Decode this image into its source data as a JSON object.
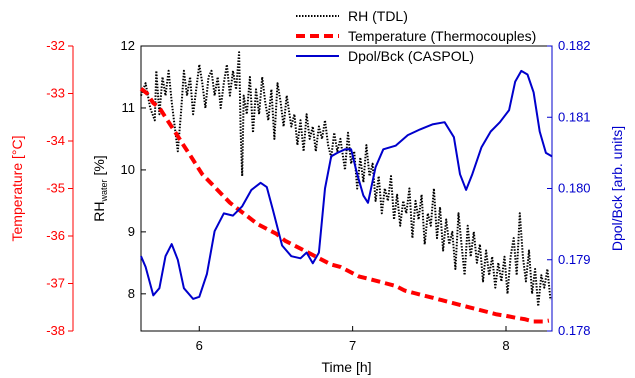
{
  "chart_data": {
    "type": "line",
    "xlabel": "Time [h]",
    "xlim": [
      5.62,
      8.3
    ],
    "x_ticks": [
      6,
      7,
      8
    ],
    "axes": {
      "left_temp": {
        "label": "Temperature [°C]",
        "range": [
          -38,
          -32
        ],
        "ticks": [
          -38,
          -37,
          -36,
          -35,
          -34,
          -33,
          -32
        ],
        "color": "#ff0000"
      },
      "left_rh": {
        "label_main": "RH",
        "label_sub": "water",
        "label_unit": " [%]",
        "range": [
          7.4,
          12
        ],
        "ticks": [
          8,
          9,
          10,
          11,
          12
        ],
        "color": "#000000"
      },
      "right": {
        "label": "Dpol/Bck [arb. units]",
        "range": [
          0.178,
          0.182
        ],
        "ticks": [
          0.178,
          0.179,
          0.18,
          0.181,
          0.182
        ],
        "tick_labels": [
          "0.178",
          "0.179",
          "0.180",
          "0.181",
          "0.182"
        ],
        "color": "#0000cc"
      }
    },
    "legend_position": "top",
    "series": [
      {
        "name": "RH (TDL)",
        "axis": "left_rh",
        "color": "#000000",
        "style": "dotted",
        "points": [
          [
            5.62,
            11.2
          ],
          [
            5.65,
            11.4
          ],
          [
            5.68,
            11.0
          ],
          [
            5.71,
            10.8
          ],
          [
            5.72,
            11.6
          ],
          [
            5.74,
            10.9
          ],
          [
            5.76,
            11.5
          ],
          [
            5.78,
            11.2
          ],
          [
            5.8,
            11.6
          ],
          [
            5.82,
            11.1
          ],
          [
            5.84,
            10.7
          ],
          [
            5.86,
            10.3
          ],
          [
            5.88,
            10.9
          ],
          [
            5.9,
            11.6
          ],
          [
            5.92,
            11.2
          ],
          [
            5.94,
            11.5
          ],
          [
            5.96,
            10.9
          ],
          [
            5.98,
            11.3
          ],
          [
            6.0,
            11.7
          ],
          [
            6.02,
            11.4
          ],
          [
            6.04,
            11.0
          ],
          [
            6.06,
            11.5
          ],
          [
            6.08,
            11.6
          ],
          [
            6.1,
            11.2
          ],
          [
            6.12,
            11.5
          ],
          [
            6.14,
            11.0
          ],
          [
            6.16,
            11.4
          ],
          [
            6.18,
            11.7
          ],
          [
            6.2,
            11.2
          ],
          [
            6.22,
            11.6
          ],
          [
            6.24,
            11.3
          ],
          [
            6.26,
            11.9
          ],
          [
            6.27,
            10.6
          ],
          [
            6.28,
            9.9
          ],
          [
            6.29,
            11.2
          ],
          [
            6.31,
            10.9
          ],
          [
            6.33,
            11.5
          ],
          [
            6.35,
            10.6
          ],
          [
            6.37,
            11.3
          ],
          [
            6.39,
            10.9
          ],
          [
            6.41,
            11.5
          ],
          [
            6.43,
            11.1
          ],
          [
            6.45,
            10.8
          ],
          [
            6.47,
            11.3
          ],
          [
            6.49,
            10.5
          ],
          [
            6.51,
            11.4
          ],
          [
            6.53,
            11.1
          ],
          [
            6.55,
            10.7
          ],
          [
            6.57,
            11.2
          ],
          [
            6.6,
            10.7
          ],
          [
            6.62,
            10.9
          ],
          [
            6.64,
            10.4
          ],
          [
            6.66,
            10.8
          ],
          [
            6.68,
            10.3
          ],
          [
            6.7,
            10.9
          ],
          [
            6.72,
            10.5
          ],
          [
            6.74,
            10.7
          ],
          [
            6.76,
            10.3
          ],
          [
            6.78,
            10.7
          ],
          [
            6.8,
            10.5
          ],
          [
            6.82,
            10.8
          ],
          [
            6.84,
            10.4
          ],
          [
            6.86,
            10.2
          ],
          [
            6.88,
            10.6
          ],
          [
            6.9,
            10.3
          ],
          [
            6.92,
            10.5
          ],
          [
            6.95,
            10.0
          ],
          [
            6.97,
            10.6
          ],
          [
            6.99,
            10.1
          ],
          [
            7.01,
            10.3
          ],
          [
            7.03,
            9.7
          ],
          [
            7.05,
            10.2
          ],
          [
            7.07,
            9.8
          ],
          [
            7.09,
            10.4
          ],
          [
            7.11,
            9.9
          ],
          [
            7.13,
            10.1
          ],
          [
            7.15,
            9.5
          ],
          [
            7.17,
            9.9
          ],
          [
            7.19,
            9.3
          ],
          [
            7.21,
            9.7
          ],
          [
            7.23,
            9.5
          ],
          [
            7.25,
            9.9
          ],
          [
            7.27,
            9.2
          ],
          [
            7.29,
            9.6
          ],
          [
            7.31,
            9.1
          ],
          [
            7.33,
            9.5
          ],
          [
            7.35,
            9.3
          ],
          [
            7.37,
            9.7
          ],
          [
            7.39,
            8.9
          ],
          [
            7.41,
            9.5
          ],
          [
            7.43,
            9.2
          ],
          [
            7.45,
            9.6
          ],
          [
            7.47,
            8.8
          ],
          [
            7.49,
            9.3
          ],
          [
            7.51,
            9.1
          ],
          [
            7.53,
            9.7
          ],
          [
            7.55,
            8.9
          ],
          [
            7.57,
            9.4
          ],
          [
            7.59,
            8.7
          ],
          [
            7.61,
            9.2
          ],
          [
            7.63,
            8.8
          ],
          [
            7.65,
            9.0
          ],
          [
            7.67,
            8.4
          ],
          [
            7.69,
            9.3
          ],
          [
            7.71,
            8.8
          ],
          [
            7.73,
            8.3
          ],
          [
            7.75,
            9.1
          ],
          [
            7.77,
            8.6
          ],
          [
            7.79,
            9.0
          ],
          [
            7.81,
            8.5
          ],
          [
            7.83,
            8.8
          ],
          [
            7.85,
            8.2
          ],
          [
            7.87,
            8.7
          ],
          [
            7.89,
            8.3
          ],
          [
            7.91,
            8.6
          ],
          [
            7.93,
            8.1
          ],
          [
            7.95,
            8.5
          ],
          [
            7.97,
            8.2
          ],
          [
            7.99,
            8.6
          ],
          [
            8.01,
            8.0
          ],
          [
            8.03,
            8.6
          ],
          [
            8.05,
            8.9
          ],
          [
            8.07,
            8.3
          ],
          [
            8.09,
            9.3
          ],
          [
            8.11,
            8.6
          ],
          [
            8.13,
            8.2
          ],
          [
            8.15,
            8.7
          ],
          [
            8.17,
            8.0
          ],
          [
            8.19,
            8.4
          ],
          [
            8.21,
            7.8
          ],
          [
            8.23,
            8.3
          ],
          [
            8.25,
            8.1
          ],
          [
            8.27,
            8.4
          ],
          [
            8.29,
            7.9
          ]
        ]
      },
      {
        "name": "Temperature (Thermocouples)",
        "axis": "left_temp",
        "color": "#ff0000",
        "style": "dashed",
        "points": [
          [
            5.62,
            -32.9
          ],
          [
            5.66,
            -33.0
          ],
          [
            5.7,
            -33.2
          ],
          [
            5.74,
            -33.3
          ],
          [
            5.78,
            -33.5
          ],
          [
            5.82,
            -33.7
          ],
          [
            5.86,
            -33.9
          ],
          [
            5.9,
            -34.1
          ],
          [
            5.94,
            -34.3
          ],
          [
            5.98,
            -34.5
          ],
          [
            6.02,
            -34.7
          ],
          [
            6.08,
            -34.9
          ],
          [
            6.14,
            -35.1
          ],
          [
            6.2,
            -35.3
          ],
          [
            6.26,
            -35.45
          ],
          [
            6.32,
            -35.6
          ],
          [
            6.38,
            -35.75
          ],
          [
            6.44,
            -35.85
          ],
          [
            6.5,
            -35.95
          ],
          [
            6.56,
            -36.1
          ],
          [
            6.62,
            -36.2
          ],
          [
            6.68,
            -36.3
          ],
          [
            6.74,
            -36.4
          ],
          [
            6.8,
            -36.5
          ],
          [
            6.86,
            -36.6
          ],
          [
            6.92,
            -36.65
          ],
          [
            6.98,
            -36.75
          ],
          [
            7.04,
            -36.85
          ],
          [
            7.1,
            -36.9
          ],
          [
            7.16,
            -36.95
          ],
          [
            7.22,
            -37.0
          ],
          [
            7.28,
            -37.05
          ],
          [
            7.34,
            -37.15
          ],
          [
            7.4,
            -37.2
          ],
          [
            7.46,
            -37.25
          ],
          [
            7.52,
            -37.3
          ],
          [
            7.58,
            -37.35
          ],
          [
            7.64,
            -37.4
          ],
          [
            7.7,
            -37.45
          ],
          [
            7.76,
            -37.5
          ],
          [
            7.82,
            -37.55
          ],
          [
            7.88,
            -37.6
          ],
          [
            7.94,
            -37.65
          ],
          [
            8.0,
            -37.68
          ],
          [
            8.06,
            -37.72
          ],
          [
            8.12,
            -37.75
          ],
          [
            8.18,
            -37.8
          ],
          [
            8.24,
            -37.8
          ],
          [
            8.28,
            -37.78
          ]
        ]
      },
      {
        "name": "Dpol/Bck (CASPOL)",
        "axis": "right",
        "color": "#0000cc",
        "style": "solid",
        "points": [
          [
            5.62,
            0.17905
          ],
          [
            5.65,
            0.1789
          ],
          [
            5.7,
            0.1785
          ],
          [
            5.74,
            0.1786
          ],
          [
            5.78,
            0.17905
          ],
          [
            5.82,
            0.17922
          ],
          [
            5.86,
            0.179
          ],
          [
            5.9,
            0.1786
          ],
          [
            5.96,
            0.17845
          ],
          [
            6.0,
            0.17848
          ],
          [
            6.05,
            0.1788
          ],
          [
            6.1,
            0.1794
          ],
          [
            6.16,
            0.17965
          ],
          [
            6.22,
            0.17962
          ],
          [
            6.28,
            0.17975
          ],
          [
            6.34,
            0.17998
          ],
          [
            6.4,
            0.18008
          ],
          [
            6.44,
            0.18002
          ],
          [
            6.48,
            0.1797
          ],
          [
            6.54,
            0.1792
          ],
          [
            6.6,
            0.17905
          ],
          [
            6.66,
            0.17902
          ],
          [
            6.7,
            0.1791
          ],
          [
            6.74,
            0.17895
          ],
          [
            6.78,
            0.1791
          ],
          [
            6.82,
            0.18
          ],
          [
            6.86,
            0.18045
          ],
          [
            6.9,
            0.1805
          ],
          [
            6.95,
            0.18055
          ],
          [
            6.99,
            0.18055
          ],
          [
            7.03,
            0.1802
          ],
          [
            7.07,
            0.1799
          ],
          [
            7.1,
            0.1798
          ],
          [
            7.15,
            0.1803
          ],
          [
            7.2,
            0.18055
          ],
          [
            7.28,
            0.1806
          ],
          [
            7.36,
            0.18075
          ],
          [
            7.44,
            0.18083
          ],
          [
            7.52,
            0.1809
          ],
          [
            7.6,
            0.18093
          ],
          [
            7.66,
            0.18072
          ],
          [
            7.7,
            0.1802
          ],
          [
            7.74,
            0.17998
          ],
          [
            7.78,
            0.1802
          ],
          [
            7.84,
            0.18058
          ],
          [
            7.9,
            0.1808
          ],
          [
            7.96,
            0.18093
          ],
          [
            8.02,
            0.1811
          ],
          [
            8.06,
            0.1815
          ],
          [
            8.1,
            0.18165
          ],
          [
            8.14,
            0.1816
          ],
          [
            8.18,
            0.18135
          ],
          [
            8.22,
            0.1808
          ],
          [
            8.26,
            0.1805
          ],
          [
            8.3,
            0.18045
          ]
        ]
      }
    ]
  }
}
